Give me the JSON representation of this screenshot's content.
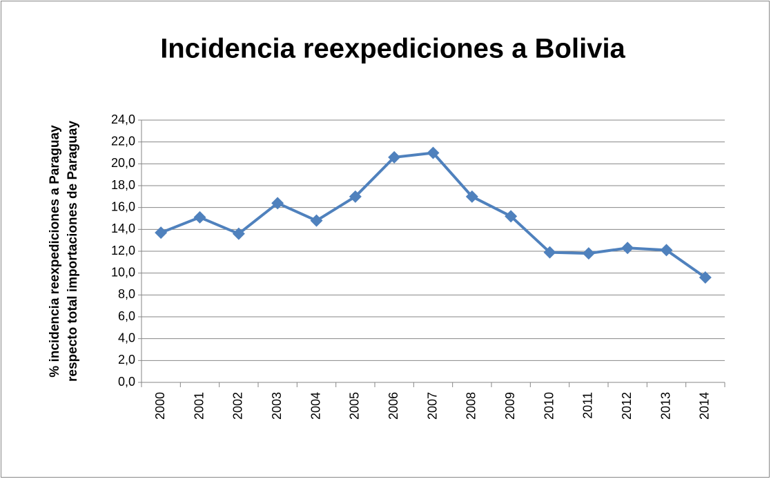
{
  "chart_data": {
    "type": "line",
    "title": "Incidencia reexpediciones a Bolivia",
    "y_label": [
      "% incidencia reexpediciones a Paraguay",
      "respecto total importaciones de Paraguay"
    ],
    "categories": [
      "2000",
      "2001",
      "2002",
      "2003",
      "2004",
      "2005",
      "2006",
      "2007",
      "2008",
      "2009",
      "2010",
      "2011",
      "2012",
      "2013",
      "2014"
    ],
    "values": [
      13.7,
      15.1,
      13.6,
      16.4,
      14.8,
      17.0,
      20.6,
      21.0,
      17.0,
      15.2,
      11.9,
      11.8,
      12.3,
      12.1,
      9.6
    ],
    "color": "#4f81bd",
    "ylim": [
      0,
      24
    ],
    "yticks": [
      {
        "value": 0,
        "label": "0,0"
      },
      {
        "value": 2,
        "label": "2,0"
      },
      {
        "value": 4,
        "label": "4,0"
      },
      {
        "value": 6,
        "label": "6,0"
      },
      {
        "value": 8,
        "label": "8,0"
      },
      {
        "value": 10,
        "label": "10,0"
      },
      {
        "value": 12,
        "label": "12,0"
      },
      {
        "value": 14,
        "label": "14,0"
      },
      {
        "value": 16,
        "label": "16,0"
      },
      {
        "value": 18,
        "label": "18,0"
      },
      {
        "value": 20,
        "label": "20,0"
      },
      {
        "value": 22,
        "label": "22,0"
      },
      {
        "value": 24,
        "label": "24,0"
      }
    ],
    "grid": true
  }
}
